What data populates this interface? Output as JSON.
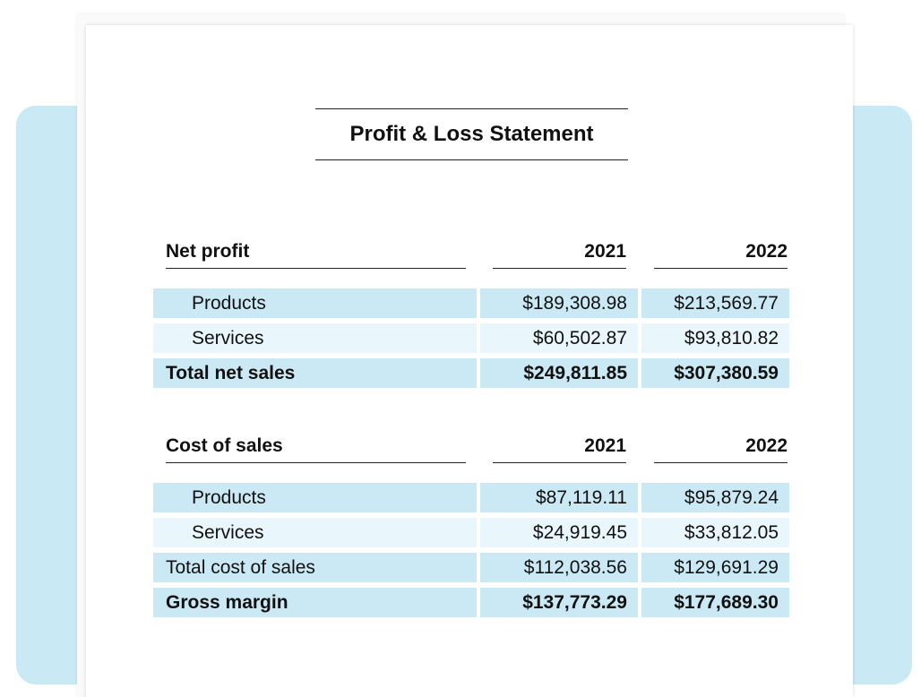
{
  "document": {
    "title": "Profit & Loss Statement"
  },
  "net_profit": {
    "header": {
      "label": "Net profit",
      "col1": "2021",
      "col2": "2022"
    },
    "rows": [
      {
        "label": "Products",
        "v2021": "$189,308.98",
        "v2022": "$213,569.77"
      },
      {
        "label": "Services",
        "v2021": "$60,502.87",
        "v2022": "$93,810.82"
      },
      {
        "label": "Total net sales",
        "v2021": "$249,811.85",
        "v2022": "$307,380.59"
      }
    ]
  },
  "cost_of_sales": {
    "header": {
      "label": "Cost of sales",
      "col1": "2021",
      "col2": "2022"
    },
    "rows": [
      {
        "label": "Products",
        "v2021": "$87,119.11",
        "v2022": "$95,879.24"
      },
      {
        "label": "Services",
        "v2021": "$24,919.45",
        "v2022": "$33,812.05"
      },
      {
        "label": "Total cost of sales",
        "v2021": "$112,038.56",
        "v2022": "$129,691.29"
      },
      {
        "label": "Gross margin",
        "v2021": "$137,773.29",
        "v2022": "$177,689.30"
      }
    ]
  },
  "colors": {
    "backdrop": "#c9e9f4",
    "row_dark": "#cbe9f4",
    "row_light": "#e9f6fb"
  }
}
